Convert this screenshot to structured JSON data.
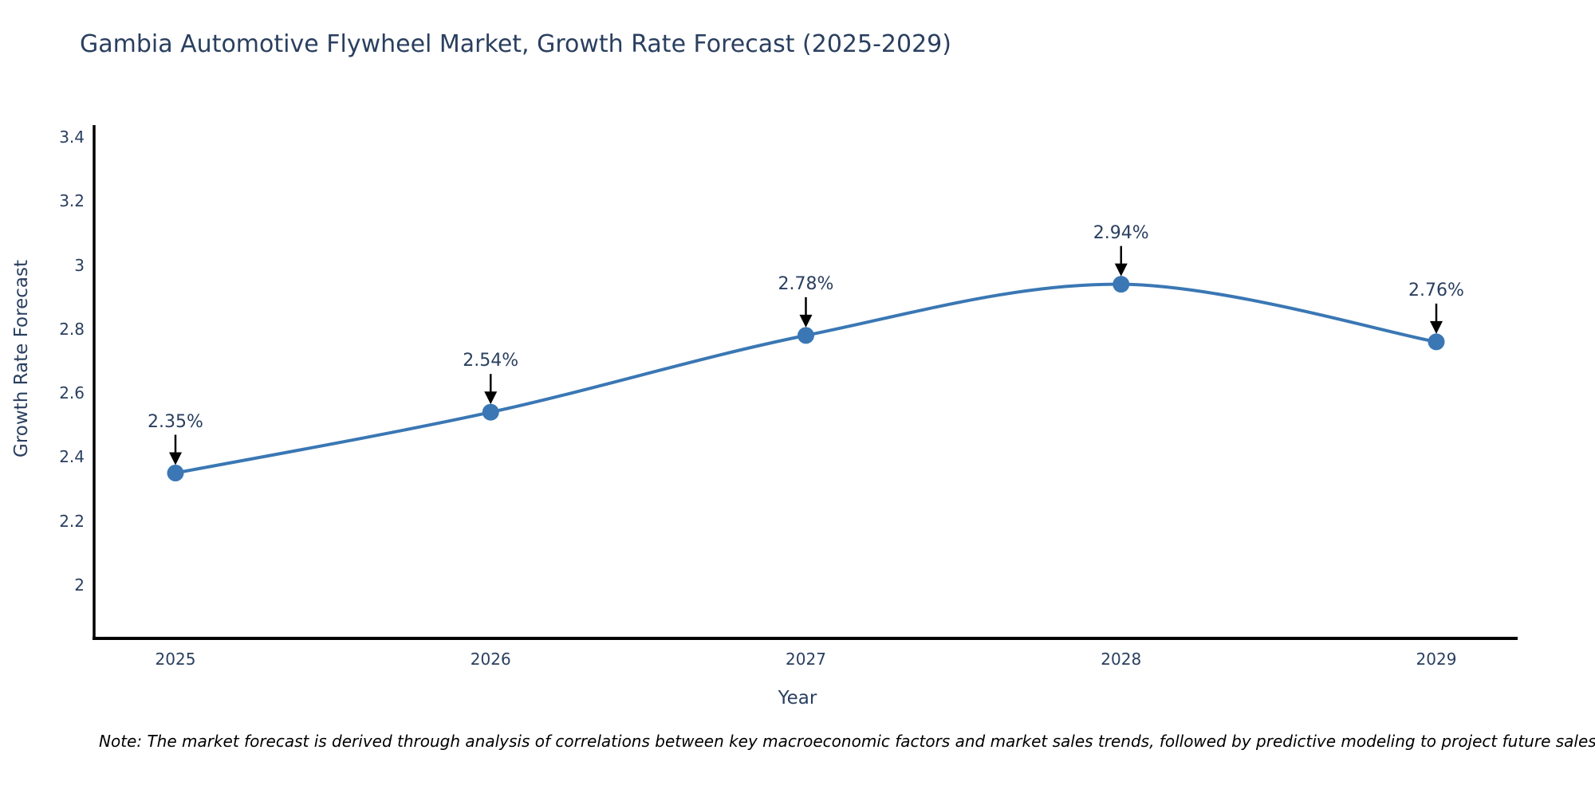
{
  "figure": {
    "note": "Note: The market forecast is derived through analysis of correlations between key macroeconomic factors and market sales trends, followed by predictive modeling to project future sales"
  },
  "chart_data": {
    "type": "line",
    "title": "Gambia Automotive Flywheel Market, Growth Rate Forecast (2025-2029)",
    "xlabel": "Year",
    "ylabel": "Growth Rate Forecast",
    "categories": [
      "2025",
      "2026",
      "2027",
      "2028",
      "2029"
    ],
    "values": [
      2.35,
      2.54,
      2.78,
      2.94,
      2.76
    ],
    "point_labels": [
      "2.35%",
      "2.54%",
      "2.78%",
      "2.94%",
      "2.76%"
    ],
    "ytick_labels": [
      "3.4",
      "3.2",
      "3",
      "2.8",
      "2.6",
      "2.4",
      "2.2",
      "2"
    ],
    "yticks": [
      3.4,
      3.2,
      3.0,
      2.8,
      2.6,
      2.4,
      2.2,
      2.0
    ],
    "ylim": [
      1.83,
      3.45
    ],
    "grid": false,
    "legend_position": "none",
    "line_shape": "spline",
    "annotations_have_arrows": true,
    "colors": {
      "line": "#3a77b4",
      "marker": "#3a77b4",
      "arrow": "#000000",
      "axis_line": "#000000",
      "chart_text": "#2a3f5f",
      "note_text": "#000000"
    }
  }
}
